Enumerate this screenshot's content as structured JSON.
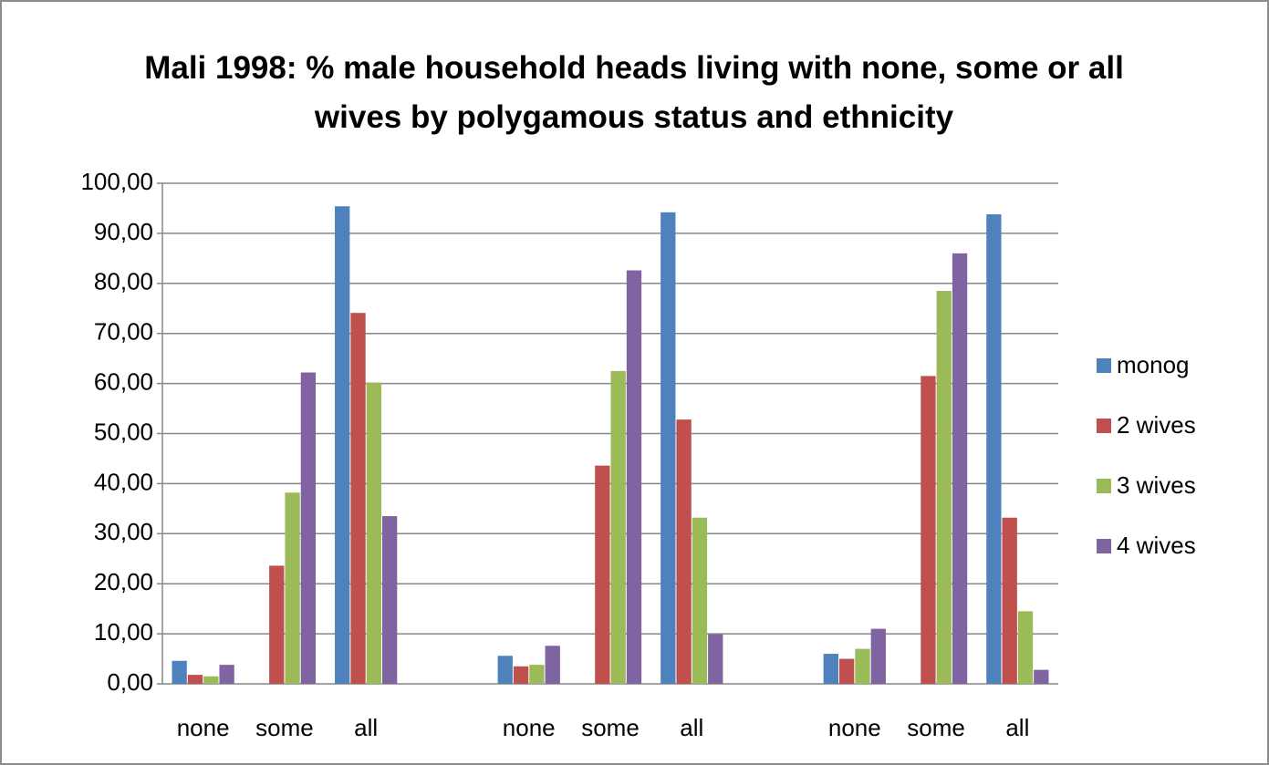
{
  "chart_data": {
    "type": "bar",
    "title": "Mali 1998:  % male household heads living with none, some or all wives by polygamous status and ethnicity",
    "categories": [
      "none",
      "some",
      "all",
      null,
      "none",
      "some",
      "all",
      null,
      "none",
      "some",
      "all"
    ],
    "series": [
      {
        "name": "monog",
        "color": "#4f81bd",
        "values": [
          4.6,
          0,
          95.4,
          null,
          5.6,
          0,
          94.2,
          null,
          6.0,
          0,
          93.8
        ]
      },
      {
        "name": "2 wives",
        "color": "#c0504d",
        "values": [
          1.8,
          23.6,
          74.1,
          null,
          3.5,
          43.6,
          52.8,
          null,
          5.0,
          61.5,
          33.2
        ]
      },
      {
        "name": "3 wives",
        "color": "#9bbb59",
        "values": [
          1.5,
          38.2,
          60.2,
          null,
          3.8,
          62.5,
          33.2,
          null,
          7.0,
          78.5,
          14.5
        ]
      },
      {
        "name": "4 wives",
        "color": "#8064a2",
        "values": [
          3.8,
          62.2,
          33.5,
          null,
          7.6,
          82.6,
          9.9,
          null,
          11.0,
          86.0,
          2.8
        ]
      }
    ],
    "ylim": [
      0,
      100
    ],
    "yticks": [
      {
        "value": 0,
        "label": "0,00"
      },
      {
        "value": 10,
        "label": "10,00"
      },
      {
        "value": 20,
        "label": "20,00"
      },
      {
        "value": 30,
        "label": "30,00"
      },
      {
        "value": 40,
        "label": "40,00"
      },
      {
        "value": 50,
        "label": "50,00"
      },
      {
        "value": 60,
        "label": "60,00"
      },
      {
        "value": 70,
        "label": "70,00"
      },
      {
        "value": 80,
        "label": "80,00"
      },
      {
        "value": 90,
        "label": "90,00"
      },
      {
        "value": 100,
        "label": "100,00"
      }
    ],
    "grid": true,
    "legend": "right"
  }
}
